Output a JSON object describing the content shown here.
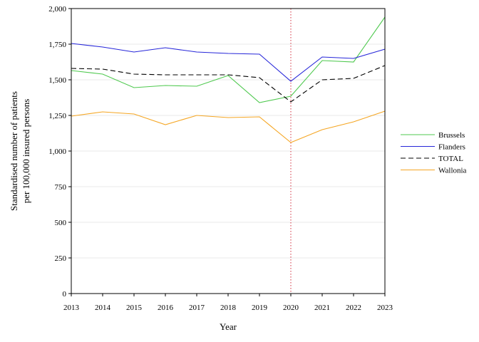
{
  "chart_data": {
    "type": "line",
    "title": "",
    "xlabel": "Year",
    "ylabel_lines": [
      "Standardised number of patients",
      "per 100,000 insured persons"
    ],
    "x": [
      2013,
      2014,
      2015,
      2016,
      2017,
      2018,
      2019,
      2020,
      2021,
      2022,
      2023
    ],
    "x_tick_labels": [
      "2013",
      "2014",
      "2015",
      "2016",
      "2017",
      "2018",
      "2019",
      "2020",
      "2021",
      "2022",
      "2023"
    ],
    "ylim": [
      0,
      2000
    ],
    "y_ticks": [
      0,
      250,
      500,
      750,
      1000,
      1250,
      1500,
      1750,
      2000
    ],
    "y_tick_labels": [
      "0",
      "250",
      "500",
      "750",
      "1,000",
      "1,250",
      "1,500",
      "1,750",
      "2,000"
    ],
    "grid": "horizontal",
    "legend_position": "right",
    "reference_line": {
      "x": 2020,
      "color": "#d94f5c",
      "style": "dotted"
    },
    "series": [
      {
        "name": "Brussels",
        "color": "#4fc94f",
        "dash": "solid",
        "values": [
          1565,
          1540,
          1445,
          1460,
          1455,
          1530,
          1340,
          1385,
          1635,
          1625,
          1940
        ]
      },
      {
        "name": "Flanders",
        "color": "#2626d9",
        "dash": "solid",
        "values": [
          1755,
          1730,
          1695,
          1725,
          1695,
          1685,
          1680,
          1490,
          1660,
          1650,
          1715
        ]
      },
      {
        "name": "TOTAL",
        "color": "#000000",
        "dash": "dashed",
        "values": [
          1580,
          1575,
          1540,
          1535,
          1535,
          1535,
          1515,
          1345,
          1500,
          1510,
          1600
        ]
      },
      {
        "name": "Wallonia",
        "color": "#f5a623",
        "dash": "solid",
        "values": [
          1245,
          1275,
          1260,
          1185,
          1250,
          1235,
          1240,
          1060,
          1150,
          1205,
          1280
        ]
      }
    ]
  }
}
